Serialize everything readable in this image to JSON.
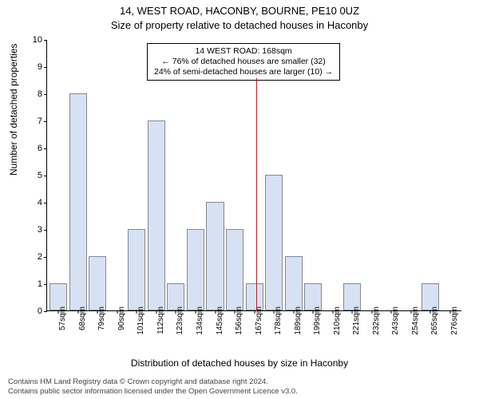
{
  "title1": "14, WEST ROAD, HACONBY, BOURNE, PE10 0UZ",
  "title2": "Size of property relative to detached houses in Haconby",
  "ylabel": "Number of detached properties",
  "xlabel": "Distribution of detached houses by size in Haconby",
  "footer1": "Contains HM Land Registry data © Crown copyright and database right 2024.",
  "footer2": "Contains public sector information licensed under the Open Government Licence v3.0.",
  "chart": {
    "type": "bar",
    "bar_fill": "#d6e2f3",
    "bar_border": "#888888",
    "background_color": "#ffffff",
    "ylim": [
      0,
      10
    ],
    "ytick_step": 1,
    "categories": [
      "57sqm",
      "68sqm",
      "79sqm",
      "90sqm",
      "101sqm",
      "112sqm",
      "123sqm",
      "134sqm",
      "145sqm",
      "156sqm",
      "167sqm",
      "178sqm",
      "189sqm",
      "199sqm",
      "210sqm",
      "221sqm",
      "232sqm",
      "243sqm",
      "254sqm",
      "265sqm",
      "276sqm"
    ],
    "values": [
      1,
      8,
      2,
      0,
      3,
      7,
      1,
      3,
      4,
      3,
      1,
      5,
      2,
      1,
      0,
      1,
      0,
      0,
      0,
      1,
      0
    ]
  },
  "reference_line": {
    "color": "#ff0000",
    "category_index": 10
  },
  "annotation": {
    "line1": "14 WEST ROAD: 168sqm",
    "line2": "← 76% of detached houses are smaller (32)",
    "line3": "24% of semi-detached houses are larger (10) →"
  }
}
